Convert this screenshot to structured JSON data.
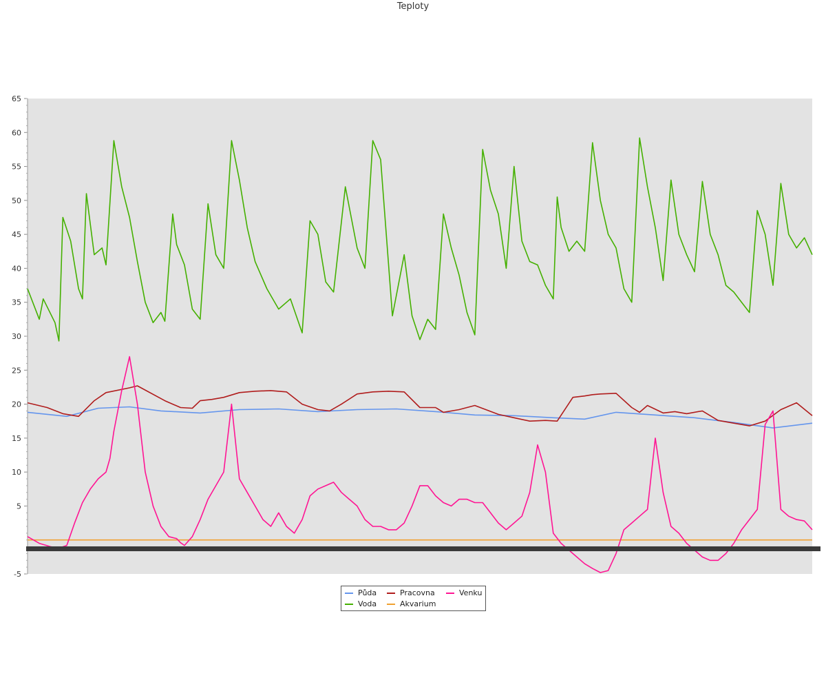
{
  "chart_data": {
    "type": "line",
    "title": "Teploty",
    "xlabel": "",
    "ylabel": "",
    "ylim": [
      -5,
      65
    ],
    "yticks": [
      -5,
      5,
      10,
      15,
      20,
      25,
      30,
      35,
      40,
      45,
      50,
      55,
      60,
      65
    ],
    "xlim": [
      0,
      100
    ],
    "grid": false,
    "legend_position": "bottom-center",
    "series": [
      {
        "name": "Půda",
        "color": "#6495ed",
        "x": [
          0,
          5,
          9,
          13,
          17,
          22,
          27,
          32,
          37,
          42,
          47,
          52,
          57,
          62,
          67,
          71,
          75,
          80,
          85,
          90,
          95,
          100
        ],
        "y": [
          18.8,
          18.2,
          19.4,
          19.6,
          19.0,
          18.7,
          19.2,
          19.3,
          18.9,
          19.2,
          19.3,
          18.9,
          18.4,
          18.3,
          18.0,
          17.8,
          18.8,
          18.4,
          18.0,
          17.3,
          16.5,
          17.2
        ]
      },
      {
        "name": "Voda",
        "color": "#44b000",
        "x": [
          0,
          1.5,
          2,
          3.5,
          4,
          4.5,
          5.5,
          6.5,
          7,
          7.5,
          8.5,
          9.5,
          10,
          11,
          12,
          13,
          14,
          15,
          16,
          17,
          17.5,
          18.5,
          19,
          20,
          21,
          22,
          23,
          24,
          25,
          26,
          27,
          28,
          29,
          30.5,
          32,
          33.5,
          35,
          36,
          37,
          38,
          39,
          40.5,
          42,
          43,
          44,
          45,
          46.5,
          48,
          49,
          50,
          51,
          52,
          53,
          54,
          55,
          56,
          57,
          58,
          59,
          60,
          61,
          62,
          63,
          64,
          65,
          66,
          67,
          67.5,
          68,
          69,
          70,
          71,
          72,
          73,
          74,
          75,
          76,
          77,
          78,
          79,
          80,
          81,
          82,
          83,
          84,
          85,
          86,
          87,
          88,
          89,
          90,
          91,
          92,
          93,
          94,
          95,
          96,
          97,
          98,
          99,
          100
        ],
        "y": [
          37,
          32.5,
          35.5,
          32,
          29.3,
          47.5,
          44,
          37,
          35.5,
          51,
          42,
          43,
          40.5,
          58.8,
          52,
          47.5,
          41,
          35,
          32,
          33.5,
          32.2,
          48,
          43.5,
          40.5,
          34,
          32.5,
          49.5,
          42,
          40,
          58.8,
          53,
          46,
          41,
          37,
          34,
          35.5,
          30.5,
          47,
          45,
          38,
          36.5,
          52,
          43,
          40,
          58.8,
          56,
          33,
          42,
          33,
          29.5,
          32.5,
          31,
          48,
          43,
          39,
          33.5,
          30.2,
          57.5,
          51.5,
          48,
          40,
          55,
          44,
          41,
          40.5,
          37.5,
          35.5,
          50.5,
          46,
          42.5,
          44,
          42.5,
          58.5,
          50,
          45,
          43,
          37,
          35,
          59.2,
          52,
          46,
          38.2,
          53,
          45,
          42,
          39.5,
          52.8,
          45,
          42,
          37.5,
          36.5,
          35,
          33.5,
          48.5,
          45,
          37.5,
          52.5,
          45,
          43,
          44.5,
          42
        ]
      },
      {
        "name": "Pracovna",
        "color": "#b01c1c",
        "x": [
          0,
          2.5,
          4.5,
          6.5,
          8.5,
          10,
          13,
          14,
          17.5,
          19.5,
          21,
          22,
          23.5,
          25,
          27,
          29,
          31,
          33,
          35,
          37,
          38.5,
          40,
          42,
          44,
          46,
          48,
          50,
          52,
          53,
          55,
          57,
          60,
          62,
          64,
          66,
          67.5,
          69.5,
          71,
          72,
          73,
          75,
          77,
          78,
          79,
          81,
          82.5,
          84,
          86,
          88,
          90,
          92,
          94,
          96,
          98,
          100
        ],
        "y": [
          20.2,
          19.5,
          18.6,
          18.2,
          20.5,
          21.7,
          22.4,
          22.7,
          20.5,
          19.5,
          19.4,
          20.5,
          20.7,
          21.0,
          21.7,
          21.9,
          22.0,
          21.8,
          20.0,
          19.2,
          19.0,
          20.0,
          21.5,
          21.8,
          21.9,
          21.8,
          19.5,
          19.5,
          18.8,
          19.2,
          19.8,
          18.5,
          18.0,
          17.5,
          17.6,
          17.5,
          21.0,
          21.2,
          21.4,
          21.5,
          21.6,
          19.5,
          18.8,
          19.8,
          18.7,
          18.9,
          18.6,
          19.0,
          17.6,
          17.2,
          16.8,
          17.5,
          19.2,
          20.2,
          18.3
        ]
      },
      {
        "name": "Akvarium",
        "color": "#f0a030",
        "x": [
          0,
          100
        ],
        "y": [
          0,
          0
        ]
      },
      {
        "name": "Venku",
        "color": "#ff1493",
        "x": [
          0,
          1.5,
          3,
          4,
          5,
          6,
          7,
          8,
          9,
          10,
          10.5,
          11,
          12,
          13,
          14,
          15,
          16,
          17,
          18,
          19,
          19.5,
          20,
          21,
          22,
          23,
          24,
          25,
          26,
          27,
          28,
          29,
          30,
          31,
          32,
          33,
          34,
          35,
          36,
          37,
          38,
          39,
          40,
          41,
          42,
          43,
          44,
          45,
          46,
          47,
          48,
          49,
          50,
          51,
          52,
          53,
          54,
          55,
          56,
          57,
          58,
          59,
          60,
          61,
          62,
          63,
          64,
          65,
          66,
          67,
          68,
          69,
          70,
          71,
          72,
          73,
          74,
          75,
          76,
          77,
          78,
          79,
          80,
          81,
          82,
          83,
          84,
          85,
          86,
          87,
          88,
          89,
          90,
          91,
          92,
          93,
          94,
          95,
          96,
          97,
          98,
          99,
          100
        ],
        "y": [
          0.5,
          -0.5,
          -1.0,
          -1.2,
          -0.8,
          2.5,
          5.5,
          7.5,
          9.0,
          10.0,
          12.0,
          16.0,
          22.0,
          27.0,
          20.0,
          10.0,
          5.0,
          2.0,
          0.5,
          0.2,
          -0.4,
          -0.8,
          0.5,
          3.0,
          6.0,
          8.0,
          10.0,
          20.0,
          9.0,
          7.0,
          5.0,
          3.0,
          2.0,
          4.0,
          2.0,
          1.0,
          3.0,
          6.5,
          7.5,
          8.0,
          8.5,
          7.0,
          6.0,
          5.0,
          3.0,
          2.0,
          2.0,
          1.5,
          1.5,
          2.5,
          5.0,
          8.0,
          8.0,
          6.5,
          5.5,
          5.0,
          6.0,
          6.0,
          5.5,
          5.5,
          4.0,
          2.5,
          1.5,
          2.5,
          3.5,
          7.0,
          14.0,
          10.0,
          1.0,
          -0.5,
          -1.5,
          -2.5,
          -3.5,
          -4.2,
          -4.8,
          -4.5,
          -2.0,
          1.5,
          2.5,
          3.5,
          4.5,
          15.0,
          7.0,
          2.0,
          1.0,
          -0.5,
          -1.5,
          -2.5,
          -3.0,
          -3.0,
          -2.0,
          -0.5,
          1.5,
          3.0,
          4.5,
          17.0,
          19.0,
          4.5,
          3.5,
          3.0,
          2.8,
          1.5
        ]
      }
    ]
  }
}
